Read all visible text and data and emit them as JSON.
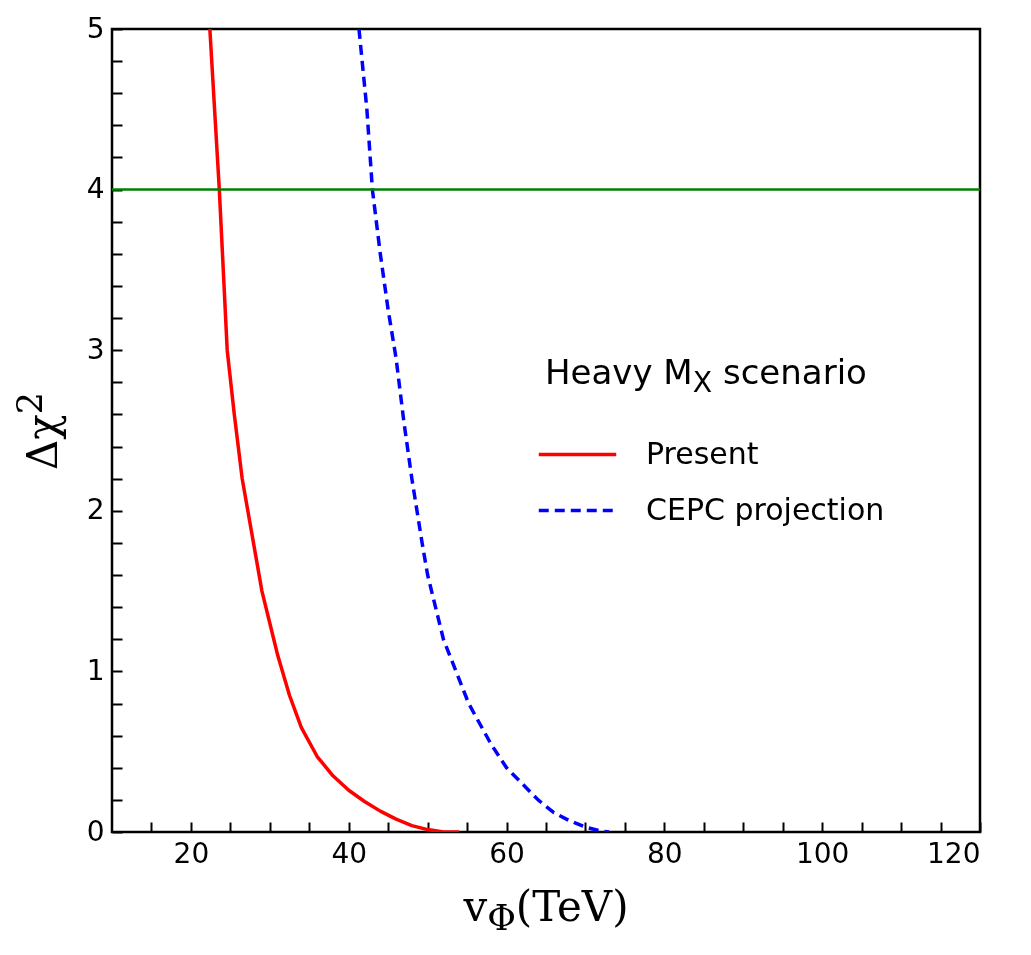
{
  "chart_data": {
    "type": "line",
    "xlabel": "v$_{Φ}$(TeV)",
    "ylabel": "Δχ$^{2}$",
    "legend_title": "Heavy M$_{X}$ scenario",
    "legend": "right",
    "grid": false,
    "xlim": [
      10,
      120
    ],
    "ylim": [
      0,
      5
    ],
    "xticks": [
      {
        "value": 15,
        "label": null
      },
      20,
      {
        "value": 25,
        "label": null
      },
      {
        "value": 30,
        "label": null
      },
      {
        "value": 35,
        "label": null
      },
      40,
      {
        "value": 45,
        "label": null
      },
      {
        "value": 50,
        "label": null
      },
      {
        "value": 55,
        "label": null
      },
      60,
      {
        "value": 65,
        "label": null
      },
      {
        "value": 70,
        "label": null
      },
      {
        "value": 75,
        "label": null
      },
      80,
      {
        "value": 85,
        "label": null
      },
      {
        "value": 90,
        "label": null
      },
      {
        "value": 95,
        "label": null
      },
      100,
      {
        "value": 105,
        "label": null
      },
      {
        "value": 110,
        "label": null
      },
      {
        "value": 115,
        "label": null
      },
      120
    ],
    "yticks": [
      0,
      {
        "value": 0.2,
        "label": null
      },
      {
        "value": 0.4,
        "label": null
      },
      {
        "value": 0.6,
        "label": null
      },
      {
        "value": 0.8,
        "label": null
      },
      1,
      {
        "value": 1.2,
        "label": null
      },
      {
        "value": 1.4,
        "label": null
      },
      {
        "value": 1.6,
        "label": null
      },
      {
        "value": 1.8,
        "label": null
      },
      2,
      {
        "value": 2.2,
        "label": null
      },
      {
        "value": 2.4,
        "label": null
      },
      {
        "value": 2.6,
        "label": null
      },
      {
        "value": 2.8,
        "label": null
      },
      3,
      {
        "value": 3.2,
        "label": null
      },
      {
        "value": 3.4,
        "label": null
      },
      {
        "value": 3.6,
        "label": null
      },
      {
        "value": 3.8,
        "label": null
      },
      4,
      {
        "value": 4.2,
        "label": null
      },
      {
        "value": 4.4,
        "label": null
      },
      {
        "value": 4.6,
        "label": null
      },
      {
        "value": 4.8,
        "label": null
      },
      5
    ],
    "ref_lines": [
      {
        "axis": "y",
        "value": 4,
        "color": "#008000"
      }
    ],
    "series": [
      {
        "name": "Present",
        "color": "#ff0000",
        "line_style": "solid",
        "x": [
          22.4,
          23,
          23.6,
          24.6,
          25.5,
          26.5,
          28,
          29,
          30,
          31,
          32.5,
          34,
          36,
          38,
          40,
          42,
          44,
          46,
          48,
          50,
          52,
          54
        ],
        "values": [
          5,
          4.5,
          4,
          3,
          2.6,
          2.2,
          1.78,
          1.5,
          1.3,
          1.1,
          0.85,
          0.65,
          0.47,
          0.35,
          0.26,
          0.19,
          0.13,
          0.08,
          0.04,
          0.015,
          0,
          0
        ]
      },
      {
        "name": "CEPC projection",
        "color": "#0000ff",
        "line_style": "dashed",
        "x": [
          41.3,
          42.3,
          43,
          44,
          45,
          46,
          47,
          48,
          49.3,
          50,
          52,
          54,
          55.2,
          58,
          60,
          62,
          64,
          66,
          68,
          70,
          72,
          73
        ],
        "values": [
          5,
          4.5,
          4,
          3.6,
          3.25,
          2.95,
          2.55,
          2.2,
          1.8,
          1.6,
          1.2,
          0.95,
          0.8,
          0.55,
          0.4,
          0.3,
          0.2,
          0.12,
          0.07,
          0.03,
          0.005,
          0
        ]
      }
    ]
  }
}
